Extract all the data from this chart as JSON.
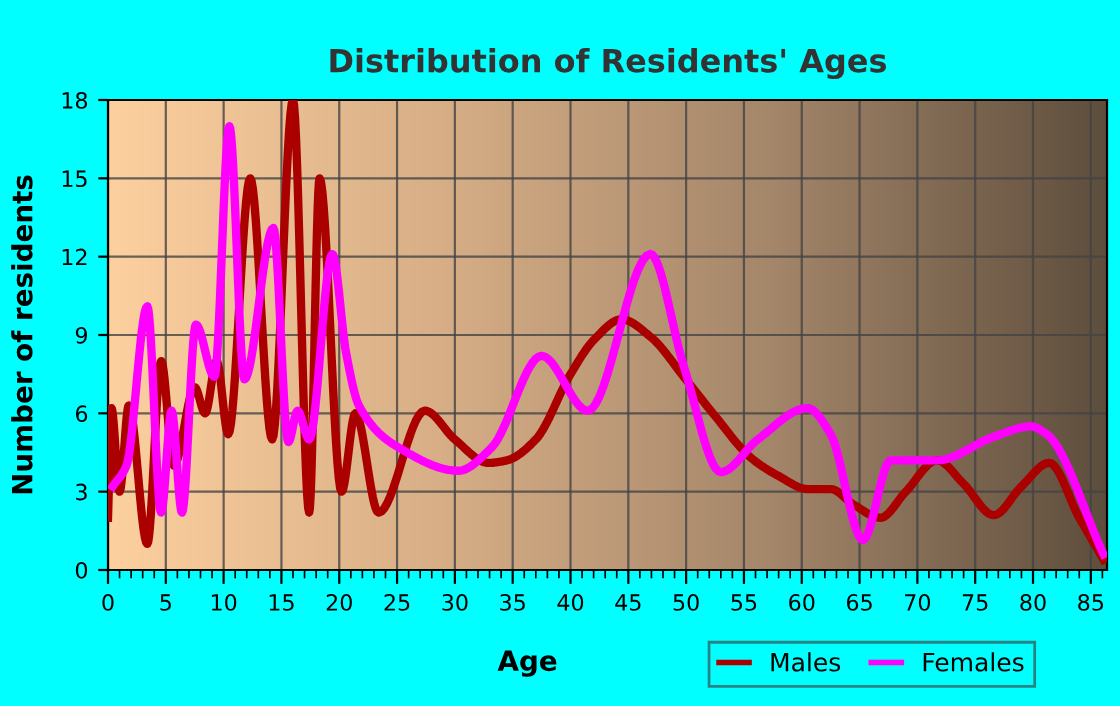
{
  "chart_data": {
    "type": "line",
    "title": "Distribution of Residents' Ages",
    "xlabel": "Age",
    "ylabel": "Number of residents",
    "series": [
      {
        "name": "Males",
        "color": "#aa0000",
        "x": [
          0,
          0.3,
          1,
          1.8,
          3.4,
          4.6,
          5.7,
          7.5,
          8.4,
          9.4,
          10.4,
          12.3,
          14.2,
          16,
          17.4,
          18.3,
          20.2,
          21.4,
          23.4,
          27.4,
          30,
          32.9,
          34.5,
          37,
          40,
          42,
          44.4,
          47,
          49.8,
          52.5,
          55.6,
          58,
          60.5,
          62.5,
          64.5,
          66.8,
          69,
          71.7,
          74,
          76.6,
          79,
          81.4,
          84,
          86.1
        ],
        "values": [
          2,
          6.2,
          3,
          6.3,
          1,
          8,
          4,
          7,
          6,
          8,
          5.2,
          15,
          5,
          18,
          2.2,
          15,
          3,
          6,
          2.2,
          6.1,
          5,
          4.1,
          4.2,
          5,
          7.5,
          8.8,
          9.6,
          8.9,
          7.4,
          5.9,
          4.3,
          3.6,
          3.1,
          3.1,
          2.5,
          2,
          3,
          4.2,
          3.3,
          2.1,
          3.2,
          4.1,
          2,
          0.4
        ]
      },
      {
        "name": "Females",
        "color": "#ff00ff",
        "x": [
          0.4,
          1.6,
          3.4,
          4.6,
          5.5,
          6.4,
          7.6,
          9.2,
          10.5,
          11.8,
          14.3,
          15.6,
          16.4,
          17.4,
          19.4,
          20.6,
          21.7,
          25.1,
          30.3,
          33.2,
          37.5,
          41.5,
          46.9,
          49.8,
          53,
          56.2,
          60.5,
          62.5,
          65.3,
          67.7,
          71.7,
          76.6,
          79.8,
          81.2,
          86.1
        ],
        "values": [
          3.2,
          4,
          10.1,
          2.2,
          6.1,
          2.2,
          9.4,
          7.4,
          17,
          7.3,
          13.1,
          4.9,
          6.1,
          5,
          12.1,
          8.3,
          6.3,
          4.7,
          3.8,
          4.7,
          8.2,
          6.1,
          12.1,
          7.8,
          3.75,
          5,
          6.2,
          5.2,
          1.15,
          4.2,
          4.2,
          5.1,
          5.5,
          5.2,
          0.6
        ]
      }
    ],
    "xlim": [
      0,
      86.4
    ],
    "xticks": [
      0,
      5,
      10,
      15,
      20,
      25,
      30,
      35,
      40,
      45,
      50,
      55,
      60,
      65,
      70,
      75,
      80,
      85
    ],
    "ylim": [
      0,
      18
    ],
    "yticks": [
      0,
      3,
      6,
      9,
      12,
      15,
      18
    ],
    "grid": true,
    "legend": "bottom right",
    "line_style": "solid",
    "marker": "none"
  }
}
